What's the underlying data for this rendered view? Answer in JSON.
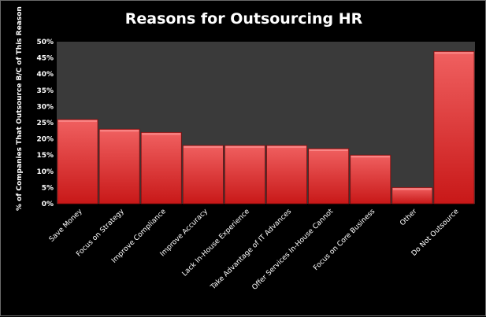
{
  "chart_data": {
    "type": "bar",
    "title": "Reasons for Outsourcing HR",
    "xlabel": "",
    "ylabel": "% of Companies That Outsource B/C of This Reason",
    "ylim": [
      0,
      50
    ],
    "yticks": [
      "0%",
      "5%",
      "10%",
      "15%",
      "20%",
      "25%",
      "30%",
      "35%",
      "40%",
      "45%",
      "50%"
    ],
    "categories": [
      "Save Money",
      "Focus on Strategy",
      "Improve Compliance",
      "Improve Accuracy",
      "Lack In-House Experience",
      "Take Advantage of IT Advances",
      "Offer Services In-House Cannot",
      "Focus on Core Business",
      "Other",
      "Do Not Outsource"
    ],
    "values": [
      26,
      23,
      22,
      18,
      18,
      18,
      17,
      15,
      5,
      47
    ],
    "grid": false,
    "legend": "none",
    "colors": {
      "background": "#000000",
      "plot_area": "#3a3a3a",
      "bar_top": "#f06060",
      "bar_bottom": "#c81818",
      "bar_edge": "#7a0c0c",
      "text": "#ffffff"
    }
  }
}
